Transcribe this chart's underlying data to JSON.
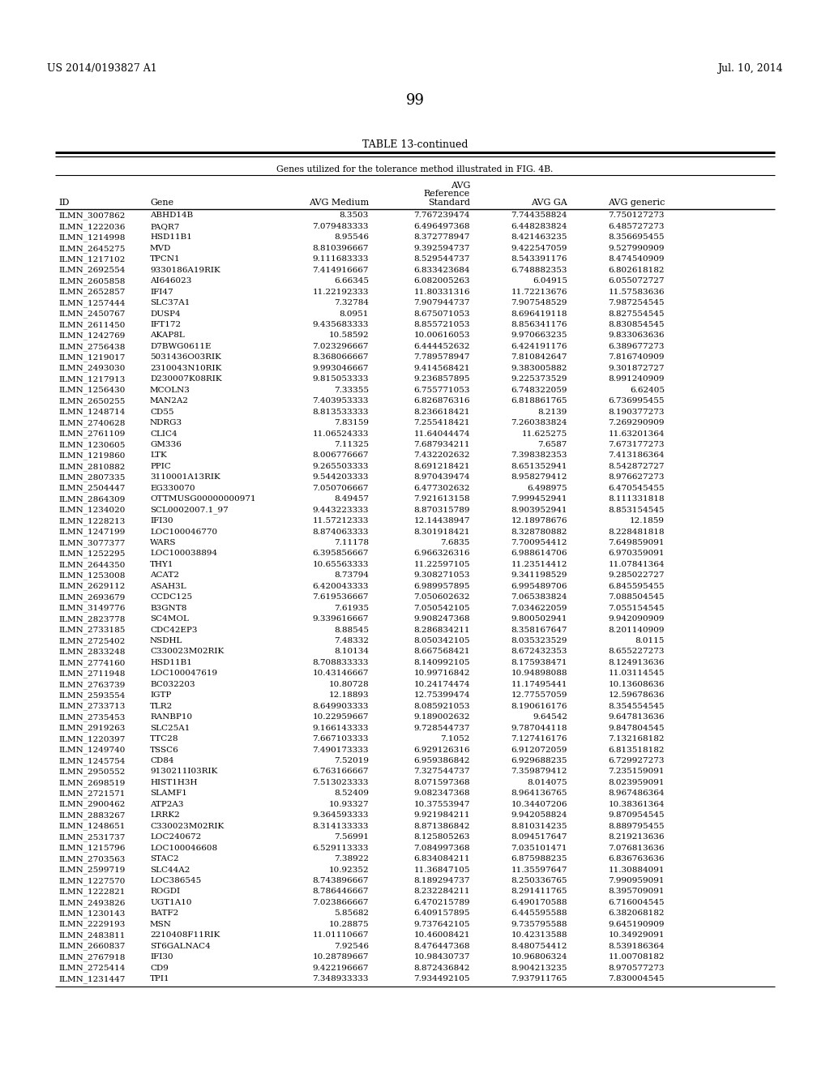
{
  "header_left": "US 2014/0193827 A1",
  "header_right": "Jul. 10, 2014",
  "page_number": "99",
  "table_title": "TABLE 13-continued",
  "table_subtitle": "Genes utilized for the tolerance method illustrated in FIG. 4B.",
  "rows": [
    [
      "ILMN_3007862",
      "ABHD14B",
      "8.3503",
      "7.767239474",
      "7.744358824",
      "7.750127273"
    ],
    [
      "ILMN_1222036",
      "PAQR7",
      "7.079483333",
      "6.496497368",
      "6.448283824",
      "6.485727273"
    ],
    [
      "ILMN_1214998",
      "HSD11B1",
      "8.95546",
      "8.372778947",
      "8.421463235",
      "8.356695455"
    ],
    [
      "ILMN_2645275",
      "MVD",
      "8.810396667",
      "9.392594737",
      "9.422547059",
      "9.527990909"
    ],
    [
      "ILMN_1217102",
      "TPCN1",
      "9.111683333",
      "8.529544737",
      "8.543391176",
      "8.474540909"
    ],
    [
      "ILMN_2692554",
      "9330186A19RIK",
      "7.414916667",
      "6.833423684",
      "6.748882353",
      "6.802618182"
    ],
    [
      "ILMN_2605858",
      "AI646023",
      "6.66345",
      "6.082005263",
      "6.04915",
      "6.055072727"
    ],
    [
      "ILMN_2652857",
      "IFI47",
      "11.22192333",
      "11.80331316",
      "11.72213676",
      "11.57583636"
    ],
    [
      "ILMN_1257444",
      "SLC37A1",
      "7.32784",
      "7.907944737",
      "7.907548529",
      "7.987254545"
    ],
    [
      "ILMN_2450767",
      "DUSP4",
      "8.0951",
      "8.675071053",
      "8.696419118",
      "8.827554545"
    ],
    [
      "ILMN_2611450",
      "IFT172",
      "9.435683333",
      "8.855721053",
      "8.856341176",
      "8.830854545"
    ],
    [
      "ILMN_1242769",
      "AKAP8L",
      "10.58592",
      "10.00616053",
      "9.970663235",
      "9.833063636"
    ],
    [
      "ILMN_2756438",
      "D7BWG0611E",
      "7.023296667",
      "6.444452632",
      "6.424191176",
      "6.389677273"
    ],
    [
      "ILMN_1219017",
      "5031436O03RIK",
      "8.368066667",
      "7.789578947",
      "7.810842647",
      "7.816740909"
    ],
    [
      "ILMN_2493030",
      "2310043N10RIK",
      "9.993046667",
      "9.414568421",
      "9.383005882",
      "9.301872727"
    ],
    [
      "ILMN_1217913",
      "D230007K08RIK",
      "9.815053333",
      "9.236857895",
      "9.225373529",
      "8.991240909"
    ],
    [
      "ILMN_1256430",
      "MCOLN3",
      "7.33355",
      "6.755771053",
      "6.748322059",
      "6.62405"
    ],
    [
      "ILMN_2650255",
      "MAN2A2",
      "7.403953333",
      "6.826876316",
      "6.818861765",
      "6.736995455"
    ],
    [
      "ILMN_1248714",
      "CD55",
      "8.813533333",
      "8.236618421",
      "8.2139",
      "8.190377273"
    ],
    [
      "ILMN_2740628",
      "NDRG3",
      "7.83159",
      "7.255418421",
      "7.260383824",
      "7.269290909"
    ],
    [
      "ILMN_2761109",
      "CLIC4",
      "11.06524333",
      "11.64044474",
      "11.625275",
      "11.63201364"
    ],
    [
      "ILMN_1230605",
      "GM336",
      "7.11325",
      "7.687934211",
      "7.6587",
      "7.673177273"
    ],
    [
      "ILMN_1219860",
      "LTK",
      "8.006776667",
      "7.432202632",
      "7.398382353",
      "7.413186364"
    ],
    [
      "ILMN_2810882",
      "PPIC",
      "9.265503333",
      "8.691218421",
      "8.651352941",
      "8.542872727"
    ],
    [
      "ILMN_2807335",
      "3110001A13RIK",
      "9.544203333",
      "8.970439474",
      "8.958279412",
      "8.976627273"
    ],
    [
      "ILMN_2504447",
      "EG330070",
      "7.050706667",
      "6.477302632",
      "6.498975",
      "6.470545455"
    ],
    [
      "ILMN_2864309",
      "OTTMUSG00000000971",
      "8.49457",
      "7.921613158",
      "7.999452941",
      "8.111331818"
    ],
    [
      "ILMN_1234020",
      "SCL0002007.1_97",
      "9.443223333",
      "8.870315789",
      "8.903952941",
      "8.853154545"
    ],
    [
      "ILMN_1228213",
      "IFI30",
      "11.57212333",
      "12.14438947",
      "12.18978676",
      "12.1859"
    ],
    [
      "ILMN_1247199",
      "LOC100046770",
      "8.874063333",
      "8.301918421",
      "8.328780882",
      "8.228481818"
    ],
    [
      "ILMN_3077377",
      "WARS",
      "7.11178",
      "7.6835",
      "7.700954412",
      "7.649859091"
    ],
    [
      "ILMN_1252295",
      "LOC100038894",
      "6.395856667",
      "6.966326316",
      "6.988614706",
      "6.970359091"
    ],
    [
      "ILMN_2644350",
      "THY1",
      "10.65563333",
      "11.22597105",
      "11.23514412",
      "11.07841364"
    ],
    [
      "ILMN_1253008",
      "ACAT2",
      "8.73794",
      "9.308271053",
      "9.341198529",
      "9.285022727"
    ],
    [
      "ILMN_2629112",
      "ASAH3L",
      "6.420043333",
      "6.989957895",
      "6.995489706",
      "6.845595455"
    ],
    [
      "ILMN_2693679",
      "CCDC125",
      "7.619536667",
      "7.050602632",
      "7.065383824",
      "7.088504545"
    ],
    [
      "ILMN_3149776",
      "B3GNT8",
      "7.61935",
      "7.050542105",
      "7.034622059",
      "7.055154545"
    ],
    [
      "ILMN_2823778",
      "SC4MOL",
      "9.339616667",
      "9.908247368",
      "9.800502941",
      "9.942090909"
    ],
    [
      "ILMN_2733185",
      "CDC42EP3",
      "8.88545",
      "8.286834211",
      "8.358167647",
      "8.201140909"
    ],
    [
      "ILMN_2725402",
      "NSDHL",
      "7.48332",
      "8.050342105",
      "8.035323529",
      "8.0115"
    ],
    [
      "ILMN_2833248",
      "C330023M02RIK",
      "8.10134",
      "8.667568421",
      "8.672432353",
      "8.655227273"
    ],
    [
      "ILMN_2774160",
      "HSD11B1",
      "8.708833333",
      "8.140992105",
      "8.175938471",
      "8.124913636"
    ],
    [
      "ILMN_2711948",
      "LOC100047619",
      "10.43146667",
      "10.99716842",
      "10.94898088",
      "11.03114545"
    ],
    [
      "ILMN_2763739",
      "BC032203",
      "10.80728",
      "10.24174474",
      "11.17495441",
      "10.13608636"
    ],
    [
      "ILMN_2593554",
      "IGTP",
      "12.18893",
      "12.75399474",
      "12.77557059",
      "12.59678636"
    ],
    [
      "ILMN_2733713",
      "TLR2",
      "8.649903333",
      "8.085921053",
      "8.190616176",
      "8.354554545"
    ],
    [
      "ILMN_2735453",
      "RANBP10",
      "10.22959667",
      "9.189002632",
      "9.64542",
      "9.647813636"
    ],
    [
      "ILMN_2919263",
      "SLC25A1",
      "9.166143333",
      "9.728544737",
      "9.787044118",
      "9.847804545"
    ],
    [
      "ILMN_1220397",
      "TTC28",
      "7.667103333",
      "7.1052",
      "7.127416176",
      "7.132168182"
    ],
    [
      "ILMN_1249740",
      "TSSC6",
      "7.490173333",
      "6.929126316",
      "6.912072059",
      "6.813518182"
    ],
    [
      "ILMN_1245754",
      "CD84",
      "7.52019",
      "6.959386842",
      "6.929688235",
      "6.729927273"
    ],
    [
      "ILMN_2950552",
      "9130211I03RIK",
      "6.763166667",
      "7.327544737",
      "7.359879412",
      "7.235159091"
    ],
    [
      "ILMN_2698519",
      "HIST1H3H",
      "7.513023333",
      "8.071597368",
      "8.014075",
      "8.023959091"
    ],
    [
      "ILMN_2721571",
      "SLAMF1",
      "8.52409",
      "9.082347368",
      "8.964136765",
      "8.967486364"
    ],
    [
      "ILMN_2900462",
      "ATP2A3",
      "10.93327",
      "10.37553947",
      "10.34407206",
      "10.38361364"
    ],
    [
      "ILMN_2883267",
      "LRRK2",
      "9.364593333",
      "9.921984211",
      "9.942058824",
      "9.870954545"
    ],
    [
      "ILMN_1248651",
      "C330023M02RIK",
      "8.314133333",
      "8.871386842",
      "8.810314235",
      "8.889795455"
    ],
    [
      "ILMN_2531737",
      "LOC240672",
      "7.56991",
      "8.125805263",
      "8.094517647",
      "8.219213636"
    ],
    [
      "ILMN_1215796",
      "LOC100046608",
      "6.529113333",
      "7.084997368",
      "7.035101471",
      "7.076813636"
    ],
    [
      "ILMN_2703563",
      "STAC2",
      "7.38922",
      "6.834084211",
      "6.875988235",
      "6.836763636"
    ],
    [
      "ILMN_2599719",
      "SLC44A2",
      "10.92352",
      "11.36847105",
      "11.35597647",
      "11.30884091"
    ],
    [
      "ILMN_1227570",
      "LOC386545",
      "8.743896667",
      "8.189294737",
      "8.250336765",
      "7.990959091"
    ],
    [
      "ILMN_1222821",
      "ROGDI",
      "8.786446667",
      "8.232284211",
      "8.291411765",
      "8.395709091"
    ],
    [
      "ILMN_2493826",
      "UGT1A10",
      "7.023866667",
      "6.470215789",
      "6.490170588",
      "6.716004545"
    ],
    [
      "ILMN_1230143",
      "BATF2",
      "5.85682",
      "6.409157895",
      "6.445595588",
      "6.382068182"
    ],
    [
      "ILMN_2229193",
      "MSN",
      "10.28875",
      "9.737642105",
      "9.735795588",
      "9.645190909"
    ],
    [
      "ILMN_2483811",
      "2210408F11RIK",
      "11.01110667",
      "10.46008421",
      "10.42313588",
      "10.34929091"
    ],
    [
      "ILMN_2660837",
      "ST6GALNAC4",
      "7.92546",
      "8.476447368",
      "8.480754412",
      "8.539186364"
    ],
    [
      "ILMN_2767918",
      "IFI30",
      "10.28789667",
      "10.98430737",
      "10.96806324",
      "11.00708182"
    ],
    [
      "ILMN_2725414",
      "CD9",
      "9.422196667",
      "8.872436842",
      "8.904213235",
      "8.970577273"
    ],
    [
      "ILMN_1231447",
      "TPI1",
      "7.348933333",
      "7.934492105",
      "7.937911765",
      "7.830004545"
    ]
  ]
}
